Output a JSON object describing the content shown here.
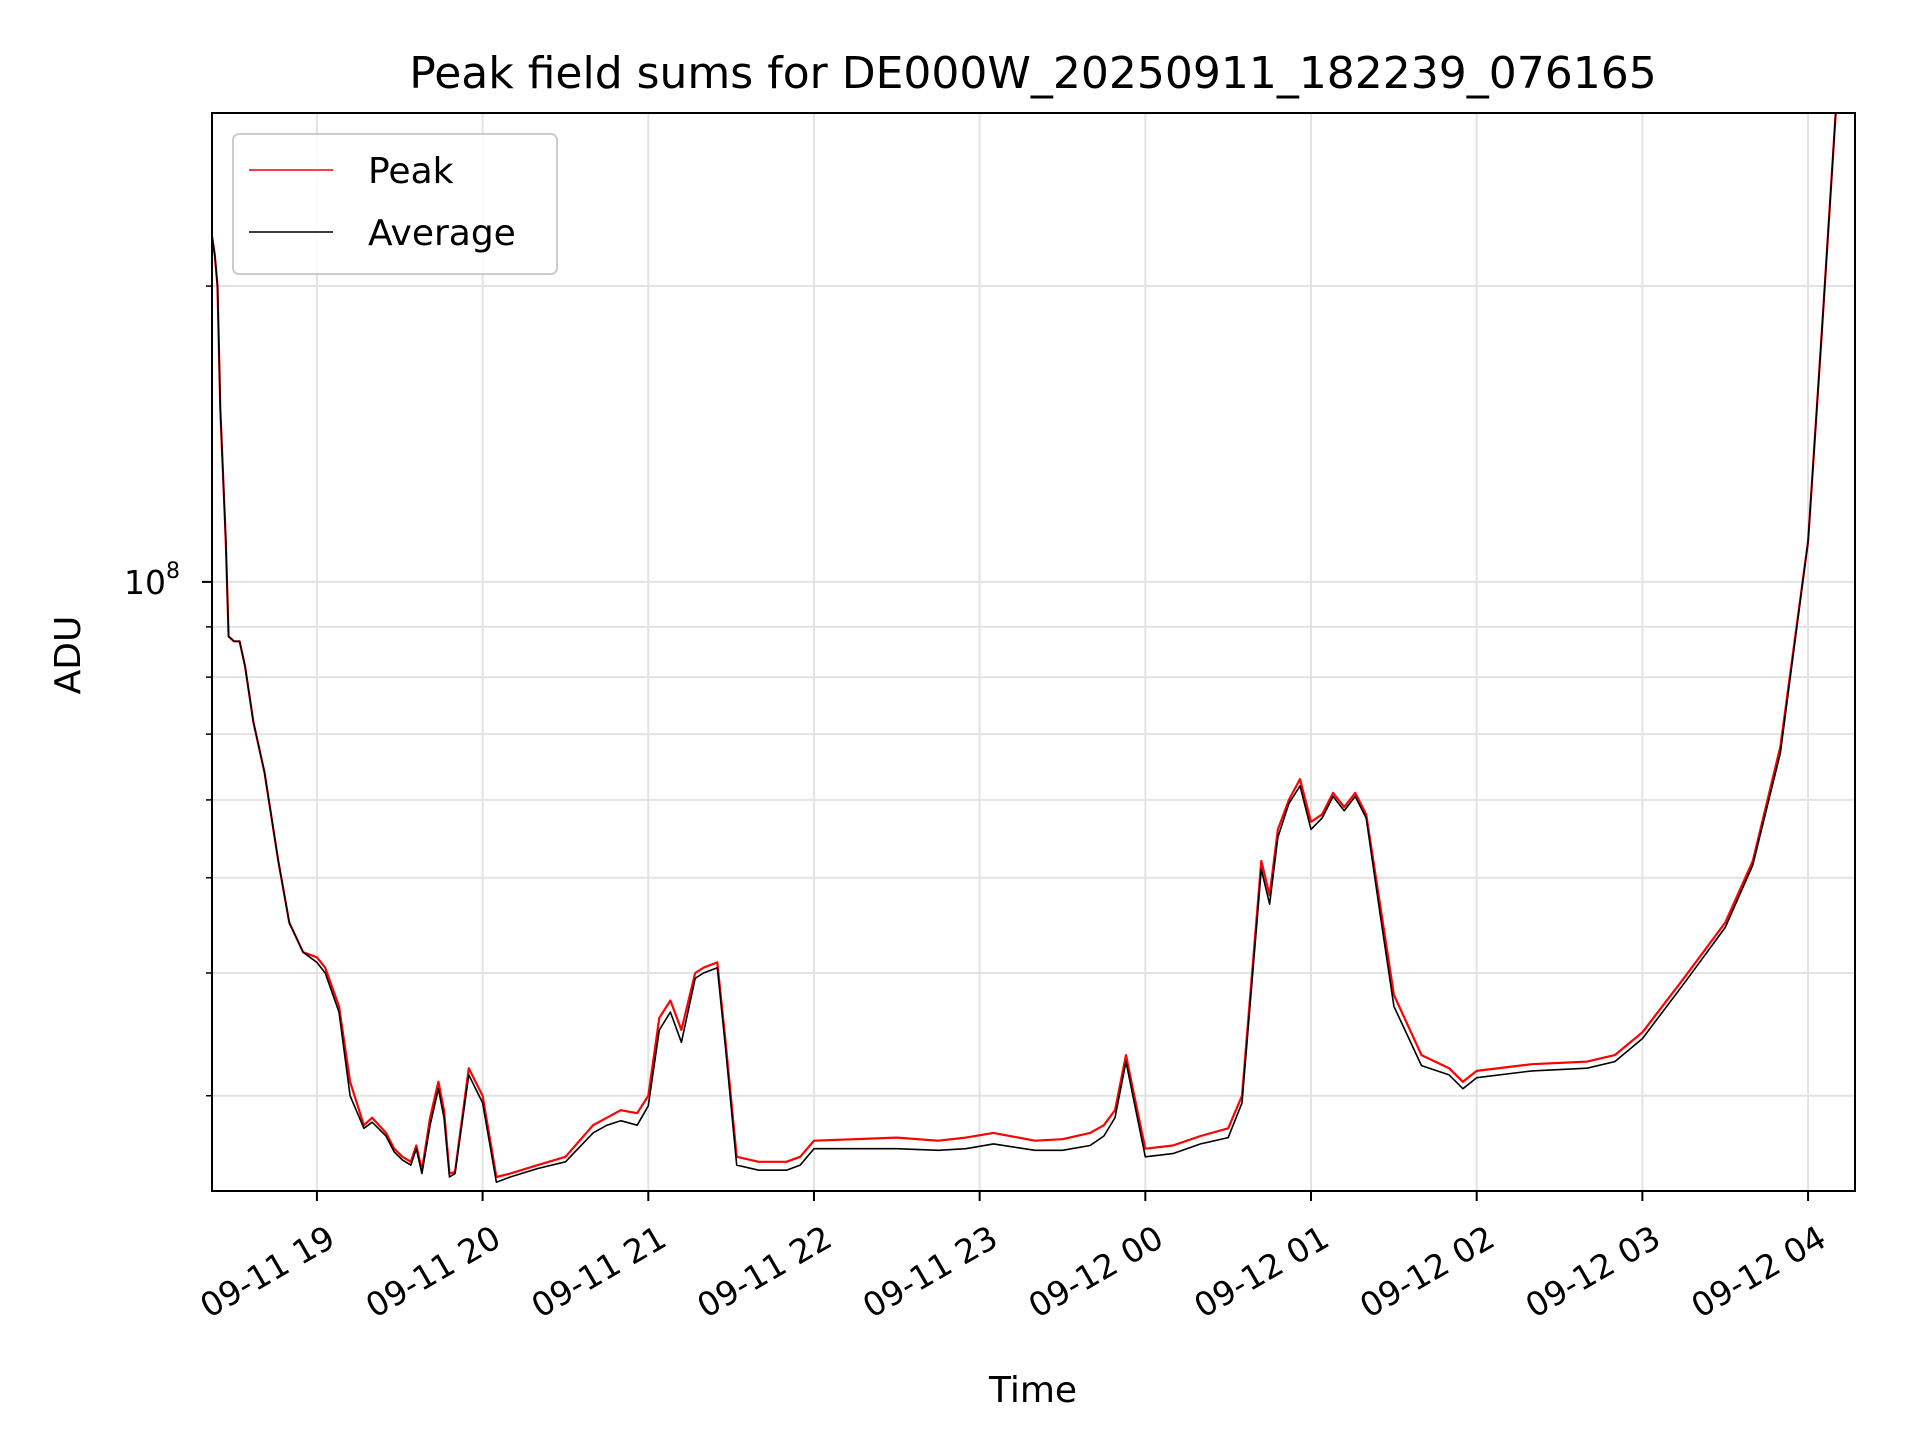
{
  "chart_data": {
    "type": "line",
    "title": "Peak field sums for DE000W_20250911_182239_076165",
    "xlabel": "Time",
    "ylabel": "ADU",
    "yscale": "log",
    "grid": true,
    "legend_placement": "top-left",
    "xlim": [
      "2025-09-11 18:22",
      "2025-09-12 04:17"
    ],
    "ylim": [
      24000000,
      300000000
    ],
    "x_ticks": [
      {
        "t": "2025-09-11 19:00",
        "label": "09-11 19"
      },
      {
        "t": "2025-09-11 20:00",
        "label": "09-11 20"
      },
      {
        "t": "2025-09-11 21:00",
        "label": "09-11 21"
      },
      {
        "t": "2025-09-11 22:00",
        "label": "09-11 22"
      },
      {
        "t": "2025-09-11 23:00",
        "label": "09-11 23"
      },
      {
        "t": "2025-09-12 00:00",
        "label": "09-12 00"
      },
      {
        "t": "2025-09-12 01:00",
        "label": "09-12 01"
      },
      {
        "t": "2025-09-12 02:00",
        "label": "09-12 02"
      },
      {
        "t": "2025-09-12 03:00",
        "label": "09-12 03"
      },
      {
        "t": "2025-09-12 04:00",
        "label": "09-12 04"
      }
    ],
    "y_ticks": [
      {
        "value": 100000000,
        "label_base": "10",
        "label_exp": "8"
      }
    ],
    "y_minor_ticks": [
      30000000,
      40000000,
      50000000,
      60000000,
      70000000,
      80000000,
      90000000,
      200000000
    ],
    "series": [
      {
        "name": "Peak",
        "color": "#ff0000",
        "x": [
          "2025-09-11 18:22",
          "2025-09-11 18:23",
          "2025-09-11 18:24",
          "2025-09-11 18:25",
          "2025-09-11 18:27",
          "2025-09-11 18:28",
          "2025-09-11 18:30",
          "2025-09-11 18:32",
          "2025-09-11 18:34",
          "2025-09-11 18:37",
          "2025-09-11 18:41",
          "2025-09-11 18:46",
          "2025-09-11 18:50",
          "2025-09-11 18:55",
          "2025-09-11 19:00",
          "2025-09-11 19:03",
          "2025-09-11 19:08",
          "2025-09-11 19:12",
          "2025-09-11 19:17",
          "2025-09-11 19:20",
          "2025-09-11 19:25",
          "2025-09-11 19:28",
          "2025-09-11 19:31",
          "2025-09-11 19:34",
          "2025-09-11 19:36",
          "2025-09-11 19:38",
          "2025-09-11 19:41",
          "2025-09-11 19:44",
          "2025-09-11 19:46",
          "2025-09-11 19:48",
          "2025-09-11 19:50",
          "2025-09-11 19:55",
          "2025-09-11 20:00",
          "2025-09-11 20:05",
          "2025-09-11 20:10",
          "2025-09-11 20:20",
          "2025-09-11 20:30",
          "2025-09-11 20:40",
          "2025-09-11 20:45",
          "2025-09-11 20:50",
          "2025-09-11 20:56",
          "2025-09-11 21:00",
          "2025-09-11 21:04",
          "2025-09-11 21:08",
          "2025-09-11 21:12",
          "2025-09-11 21:17",
          "2025-09-11 21:20",
          "2025-09-11 21:25",
          "2025-09-11 21:28",
          "2025-09-11 21:32",
          "2025-09-11 21:40",
          "2025-09-11 21:50",
          "2025-09-11 21:55",
          "2025-09-11 22:00",
          "2025-09-11 22:30",
          "2025-09-11 22:45",
          "2025-09-11 22:55",
          "2025-09-11 23:05",
          "2025-09-11 23:20",
          "2025-09-11 23:30",
          "2025-09-11 23:40",
          "2025-09-11 23:45",
          "2025-09-11 23:49",
          "2025-09-11 23:53",
          "2025-09-11 23:56",
          "2025-09-12 00:00",
          "2025-09-12 00:10",
          "2025-09-12 00:20",
          "2025-09-12 00:30",
          "2025-09-12 00:35",
          "2025-09-12 00:42",
          "2025-09-12 00:45",
          "2025-09-12 00:48",
          "2025-09-12 00:52",
          "2025-09-12 00:56",
          "2025-09-12 01:00",
          "2025-09-12 01:04",
          "2025-09-12 01:08",
          "2025-09-12 01:12",
          "2025-09-12 01:16",
          "2025-09-12 01:20",
          "2025-09-12 01:25",
          "2025-09-12 01:30",
          "2025-09-12 01:40",
          "2025-09-12 01:50",
          "2025-09-12 01:55",
          "2025-09-12 02:00",
          "2025-09-12 02:20",
          "2025-09-12 02:40",
          "2025-09-12 02:50",
          "2025-09-12 03:00",
          "2025-09-12 03:15",
          "2025-09-12 03:30",
          "2025-09-12 03:40",
          "2025-09-12 03:50",
          "2025-09-12 04:00",
          "2025-09-12 04:05",
          "2025-09-12 04:10"
        ],
        "y": [
          225000000,
          215000000,
          200000000,
          150000000,
          110000000,
          88000000,
          87000000,
          87000000,
          82000000,
          72000000,
          64000000,
          52000000,
          45000000,
          42000000,
          41500000,
          40500000,
          37000000,
          31000000,
          28000000,
          28500000,
          27500000,
          26500000,
          26000000,
          25700000,
          26700000,
          25200000,
          28500000,
          31000000,
          29000000,
          25000000,
          25100000,
          32000000,
          30000000,
          24800000,
          25000000,
          25500000,
          26000000,
          28000000,
          28500000,
          29000000,
          28800000,
          30000000,
          36000000,
          37500000,
          35000000,
          40000000,
          40500000,
          41000000,
          34000000,
          26000000,
          25700000,
          25700000,
          26000000,
          27000000,
          27200000,
          27000000,
          27200000,
          27500000,
          27000000,
          27100000,
          27500000,
          28000000,
          29000000,
          33000000,
          30000000,
          26500000,
          26700000,
          27300000,
          27800000,
          30000000,
          52000000,
          48000000,
          56000000,
          60000000,
          63000000,
          57000000,
          58000000,
          61000000,
          59000000,
          61000000,
          58000000,
          47000000,
          38000000,
          33000000,
          32000000,
          31000000,
          31800000,
          32300000,
          32500000,
          33000000,
          34800000,
          39500000,
          45000000,
          52000000,
          68000000,
          110000000,
          180000000,
          300000000
        ]
      },
      {
        "name": "Average",
        "color": "#000000",
        "x": [
          "2025-09-11 18:22",
          "2025-09-11 18:23",
          "2025-09-11 18:24",
          "2025-09-11 18:25",
          "2025-09-11 18:27",
          "2025-09-11 18:28",
          "2025-09-11 18:30",
          "2025-09-11 18:32",
          "2025-09-11 18:34",
          "2025-09-11 18:37",
          "2025-09-11 18:41",
          "2025-09-11 18:46",
          "2025-09-11 18:50",
          "2025-09-11 18:55",
          "2025-09-11 19:00",
          "2025-09-11 19:03",
          "2025-09-11 19:08",
          "2025-09-11 19:12",
          "2025-09-11 19:17",
          "2025-09-11 19:20",
          "2025-09-11 19:25",
          "2025-09-11 19:28",
          "2025-09-11 19:31",
          "2025-09-11 19:34",
          "2025-09-11 19:36",
          "2025-09-11 19:38",
          "2025-09-11 19:41",
          "2025-09-11 19:44",
          "2025-09-11 19:46",
          "2025-09-11 19:48",
          "2025-09-11 19:50",
          "2025-09-11 19:55",
          "2025-09-11 20:00",
          "2025-09-11 20:05",
          "2025-09-11 20:10",
          "2025-09-11 20:20",
          "2025-09-11 20:30",
          "2025-09-11 20:40",
          "2025-09-11 20:45",
          "2025-09-11 20:50",
          "2025-09-11 20:56",
          "2025-09-11 21:00",
          "2025-09-11 21:04",
          "2025-09-11 21:08",
          "2025-09-11 21:12",
          "2025-09-11 21:17",
          "2025-09-11 21:20",
          "2025-09-11 21:25",
          "2025-09-11 21:28",
          "2025-09-11 21:32",
          "2025-09-11 21:40",
          "2025-09-11 21:50",
          "2025-09-11 21:55",
          "2025-09-11 22:00",
          "2025-09-11 22:30",
          "2025-09-11 22:45",
          "2025-09-11 22:55",
          "2025-09-11 23:05",
          "2025-09-11 23:20",
          "2025-09-11 23:30",
          "2025-09-11 23:40",
          "2025-09-11 23:45",
          "2025-09-11 23:49",
          "2025-09-11 23:53",
          "2025-09-11 23:56",
          "2025-09-12 00:00",
          "2025-09-12 00:10",
          "2025-09-12 00:20",
          "2025-09-12 00:30",
          "2025-09-12 00:35",
          "2025-09-12 00:42",
          "2025-09-12 00:45",
          "2025-09-12 00:48",
          "2025-09-12 00:52",
          "2025-09-12 00:56",
          "2025-09-12 01:00",
          "2025-09-12 01:04",
          "2025-09-12 01:08",
          "2025-09-12 01:12",
          "2025-09-12 01:16",
          "2025-09-12 01:20",
          "2025-09-12 01:25",
          "2025-09-12 01:30",
          "2025-09-12 01:40",
          "2025-09-12 01:50",
          "2025-09-12 01:55",
          "2025-09-12 02:00",
          "2025-09-12 02:20",
          "2025-09-12 02:40",
          "2025-09-12 02:50",
          "2025-09-12 03:00",
          "2025-09-12 03:15",
          "2025-09-12 03:30",
          "2025-09-12 03:40",
          "2025-09-12 03:50",
          "2025-09-12 04:00",
          "2025-09-12 04:05",
          "2025-09-12 04:10"
        ],
        "y": [
          225000000,
          215000000,
          200000000,
          150000000,
          110000000,
          88000000,
          87000000,
          87000000,
          82000000,
          72000000,
          64000000,
          52000000,
          45000000,
          42000000,
          41000000,
          40000000,
          36500000,
          30000000,
          27800000,
          28200000,
          27300000,
          26300000,
          25800000,
          25500000,
          26500000,
          25000000,
          28000000,
          30500000,
          28500000,
          24800000,
          25000000,
          31500000,
          29500000,
          24500000,
          24800000,
          25300000,
          25700000,
          27500000,
          28000000,
          28300000,
          28000000,
          29300000,
          35000000,
          36500000,
          34000000,
          39500000,
          40000000,
          40500000,
          33500000,
          25500000,
          25200000,
          25200000,
          25500000,
          26500000,
          26500000,
          26400000,
          26500000,
          26800000,
          26400000,
          26400000,
          26700000,
          27300000,
          28500000,
          32500000,
          29500000,
          26000000,
          26200000,
          26800000,
          27200000,
          29500000,
          51000000,
          47000000,
          55000000,
          59500000,
          62000000,
          56000000,
          57500000,
          60500000,
          58500000,
          60500000,
          57500000,
          46000000,
          37000000,
          32200000,
          31500000,
          30500000,
          31300000,
          31800000,
          32000000,
          32500000,
          34300000,
          39000000,
          44500000,
          51500000,
          67000000,
          110000000,
          180000000,
          300000000
        ]
      }
    ]
  }
}
